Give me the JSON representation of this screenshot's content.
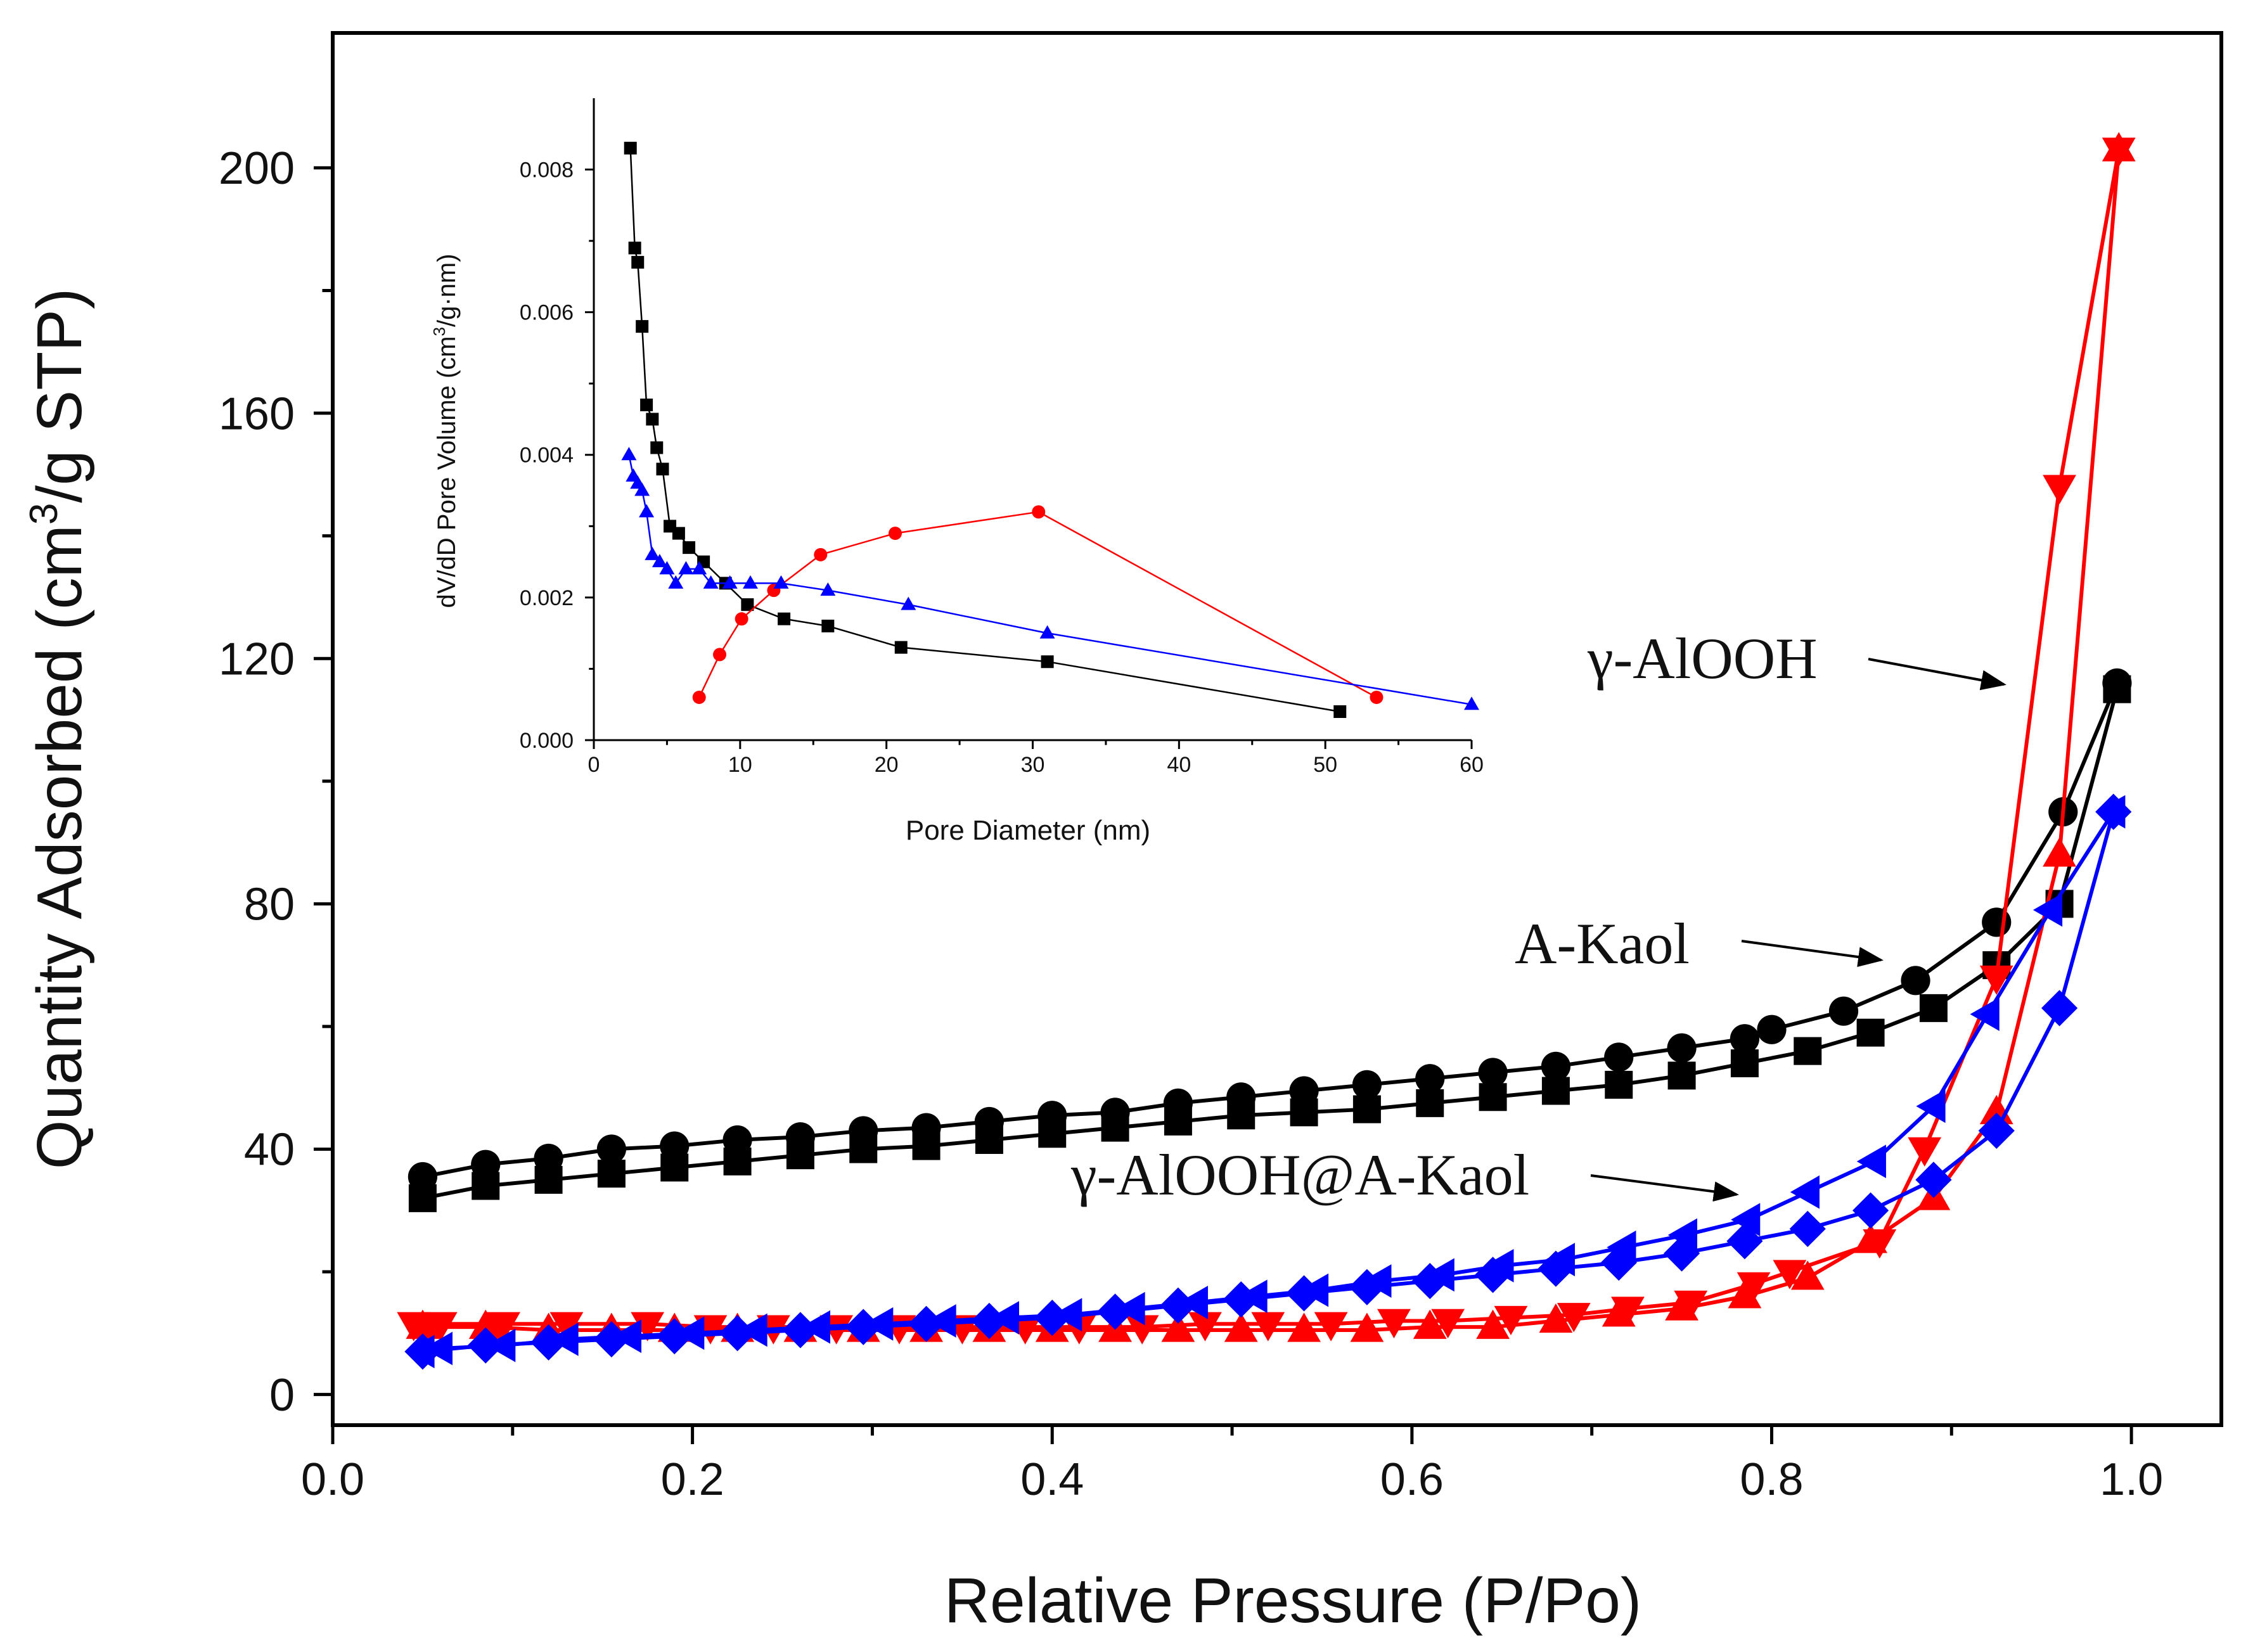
{
  "chart_data": [
    {
      "id": "main",
      "type": "scatter",
      "title": "",
      "xlabel": "Relative Pressure (P/Po)",
      "ylabel": "Quantity Adsorbed (cm",
      "ylabel_sup": "3",
      "ylabel_tail": "/g STP)",
      "xlim": [
        0.0,
        1.05
      ],
      "ylim": [
        -5,
        222
      ],
      "xticks": [
        0.0,
        0.2,
        0.4,
        0.6,
        0.8,
        1.0
      ],
      "xtick_labels": [
        "0.0",
        "0.2",
        "0.4",
        "0.6",
        "0.8",
        "1.0"
      ],
      "yticks": [
        0,
        40,
        80,
        120,
        160,
        200
      ],
      "ytick_labels": [
        "0",
        "40",
        "80",
        "120",
        "160",
        "200"
      ],
      "grid": false,
      "series": [
        {
          "name": "A-Kaol adsorption",
          "color": "#000000",
          "marker": "square",
          "x": [
            0.05,
            0.085,
            0.12,
            0.155,
            0.19,
            0.225,
            0.26,
            0.295,
            0.33,
            0.365,
            0.4,
            0.435,
            0.47,
            0.505,
            0.54,
            0.575,
            0.61,
            0.645,
            0.68,
            0.715,
            0.75,
            0.785,
            0.82,
            0.855,
            0.89,
            0.925,
            0.96,
            0.992
          ],
          "y": [
            32,
            34,
            35,
            36,
            37,
            38,
            39,
            40,
            40.5,
            41.5,
            42.5,
            43.5,
            44.5,
            45.5,
            46,
            46.5,
            47.5,
            48.5,
            49.5,
            50.5,
            52,
            54,
            56,
            59,
            63,
            70,
            80,
            115
          ]
        },
        {
          "name": "A-Kaol desorption",
          "color": "#000000",
          "marker": "circle",
          "x": [
            0.992,
            0.962,
            0.925,
            0.88,
            0.84,
            0.8,
            0.785,
            0.75,
            0.715,
            0.68,
            0.645,
            0.61,
            0.575,
            0.54,
            0.505,
            0.47,
            0.435,
            0.4,
            0.365,
            0.33,
            0.295,
            0.26,
            0.225,
            0.19,
            0.155,
            0.12,
            0.085,
            0.05
          ],
          "y": [
            116,
            95,
            77,
            67.5,
            62.5,
            59.5,
            58,
            56.5,
            55,
            53.5,
            52.5,
            51.5,
            50.5,
            49.5,
            48.5,
            47.5,
            46,
            45.5,
            44.5,
            43.5,
            43,
            42,
            41.5,
            40.5,
            40,
            38.5,
            37.5,
            35.5
          ]
        },
        {
          "name": "γ-AlOOH adsorption",
          "color": "#ff0000",
          "marker": "triangle-up",
          "x": [
            0.05,
            0.085,
            0.12,
            0.155,
            0.19,
            0.225,
            0.26,
            0.295,
            0.33,
            0.365,
            0.4,
            0.435,
            0.47,
            0.505,
            0.54,
            0.575,
            0.61,
            0.645,
            0.68,
            0.715,
            0.75,
            0.785,
            0.82,
            0.855,
            0.89,
            0.925,
            0.96,
            0.993
          ],
          "y": [
            11,
            11,
            10.5,
            10.5,
            10.5,
            10.5,
            10.5,
            10.5,
            10.5,
            10.5,
            10.5,
            10.5,
            10.5,
            10.5,
            10.5,
            10.5,
            11,
            11,
            12,
            13,
            14,
            16,
            19,
            25,
            32,
            46,
            88,
            203
          ]
        },
        {
          "name": "γ-AlOOH desorption",
          "color": "#ff0000",
          "marker": "triangle-down",
          "x": [
            0.993,
            0.96,
            0.925,
            0.885,
            0.86,
            0.81,
            0.79,
            0.755,
            0.72,
            0.69,
            0.655,
            0.62,
            0.59,
            0.555,
            0.52,
            0.485,
            0.45,
            0.415,
            0.385,
            0.35,
            0.315,
            0.28,
            0.245,
            0.21,
            0.175,
            0.13,
            0.095,
            0.06,
            0.045
          ],
          "y": [
            203,
            148,
            68,
            40,
            25,
            20,
            18,
            15,
            14,
            13,
            12.5,
            12,
            12,
            11.5,
            11.5,
            11.5,
            11,
            11,
            11,
            11,
            11,
            11,
            11,
            11,
            11.5,
            11.5,
            11.5,
            11.5,
            11.5
          ]
        },
        {
          "name": "γ-AlOOH@A-Kaol adsorption",
          "color": "#0000ff",
          "marker": "diamond",
          "x": [
            0.05,
            0.085,
            0.12,
            0.155,
            0.19,
            0.225,
            0.26,
            0.295,
            0.33,
            0.365,
            0.4,
            0.435,
            0.47,
            0.505,
            0.54,
            0.575,
            0.61,
            0.645,
            0.68,
            0.715,
            0.75,
            0.785,
            0.82,
            0.855,
            0.89,
            0.925,
            0.96,
            0.99
          ],
          "y": [
            7,
            8,
            8.5,
            9,
            9.5,
            10,
            10.5,
            11,
            11.5,
            12,
            12.5,
            13.5,
            14.5,
            15.5,
            16.5,
            17.5,
            18.5,
            19.5,
            20.5,
            21.5,
            23,
            25,
            27,
            30,
            35,
            43,
            63,
            95
          ]
        },
        {
          "name": "γ-AlOOH@A-Kaol desorption",
          "color": "#0000ff",
          "marker": "triangle-left",
          "x": [
            0.99,
            0.955,
            0.92,
            0.89,
            0.857,
            0.82,
            0.787,
            0.752,
            0.718,
            0.684,
            0.65,
            0.617,
            0.582,
            0.547,
            0.513,
            0.48,
            0.445,
            0.41,
            0.375,
            0.34,
            0.305,
            0.27,
            0.235,
            0.2,
            0.165,
            0.13,
            0.095,
            0.06,
            0.05
          ],
          "y": [
            95,
            79,
            62,
            47,
            38,
            33,
            28.5,
            26,
            24,
            22,
            21,
            19.5,
            18.5,
            17,
            16,
            15,
            14,
            13,
            12.5,
            12,
            11.5,
            11,
            10.5,
            10,
            9.5,
            9,
            8,
            7.5,
            7
          ]
        }
      ],
      "annotations": [
        {
          "text": "γ-AlOOH",
          "target_x": 0.935,
          "target_y": 114
        },
        {
          "text": "A-Kaol",
          "target_x": 0.877,
          "target_y": 69
        },
        {
          "text": "γ-AlOOH@A-Kaol",
          "target_x": 0.785,
          "target_y": 32
        }
      ]
    },
    {
      "id": "inset",
      "type": "line",
      "title": "",
      "xlabel": "Pore Diameter (nm)",
      "ylabel": "dV/dD Pore Volume (cm",
      "ylabel_sup": "3",
      "ylabel_tail": "/g·nm)",
      "xlim": [
        0,
        60
      ],
      "ylim": [
        0,
        0.009
      ],
      "xticks": [
        0,
        10,
        20,
        30,
        40,
        50,
        60
      ],
      "xtick_labels": [
        "0",
        "10",
        "20",
        "30",
        "40",
        "50",
        "60"
      ],
      "yticks": [
        0.0,
        0.002,
        0.004,
        0.006,
        0.008
      ],
      "ytick_labels": [
        "0.000",
        "0.002",
        "0.004",
        "0.006",
        "0.008"
      ],
      "grid": false,
      "series": [
        {
          "name": "A-Kaol",
          "color": "#000000",
          "marker": "square",
          "x": [
            2.5,
            2.8,
            3.0,
            3.3,
            3.6,
            4.0,
            4.3,
            4.7,
            5.2,
            5.8,
            6.5,
            7.5,
            9.0,
            10.5,
            13.0,
            16.0,
            21.0,
            31.0,
            51.0
          ],
          "y": [
            0.0083,
            0.0069,
            0.0067,
            0.0058,
            0.0047,
            0.0045,
            0.0041,
            0.0038,
            0.003,
            0.0029,
            0.0027,
            0.0025,
            0.0022,
            0.0019,
            0.0017,
            0.0016,
            0.0013,
            0.0011,
            0.0004
          ]
        },
        {
          "name": "γ-AlOOH",
          "color": "#ff0000",
          "marker": "circle",
          "x": [
            7.2,
            8.6,
            10.1,
            12.3,
            15.5,
            20.6,
            30.4,
            53.5
          ],
          "y": [
            0.0006,
            0.0012,
            0.0017,
            0.0021,
            0.0026,
            0.0029,
            0.0032,
            0.0006
          ]
        },
        {
          "name": "γ-AlOOH@A-Kaol",
          "color": "#0000ff",
          "marker": "triangle-up",
          "x": [
            2.4,
            2.7,
            3.0,
            3.3,
            3.6,
            4.0,
            4.5,
            5.0,
            5.6,
            6.3,
            7.2,
            8.0,
            9.3,
            10.7,
            12.8,
            16.0,
            21.5,
            31.0,
            60.0
          ],
          "y": [
            0.004,
            0.0037,
            0.0036,
            0.0035,
            0.0032,
            0.0026,
            0.0025,
            0.0024,
            0.0022,
            0.0024,
            0.0024,
            0.0022,
            0.0022,
            0.0022,
            0.0022,
            0.0021,
            0.0019,
            0.0015,
            0.0005
          ]
        }
      ]
    }
  ]
}
